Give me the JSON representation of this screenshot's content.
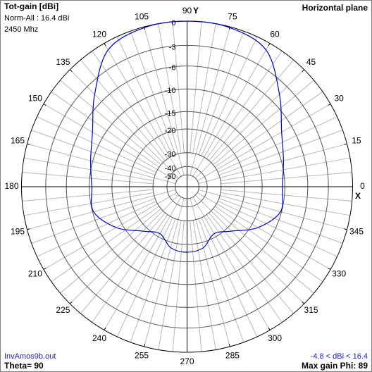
{
  "chart_data": {
    "type": "polar",
    "title": "Tot-gain [dBi]",
    "subtitle": "Norm-All : 16.4 dBi",
    "frequency": "2450 Mhz",
    "plane": "Horizontal plane",
    "y_axis_label": "Y",
    "x_axis_label": "X",
    "file": "InvAmos9b.out",
    "theta": "Theta= 90",
    "range_note": "-4.8 < dBi < 16.4",
    "max_gain": "Max gain Phi: 89",
    "x": [
      0,
      15,
      30,
      45,
      60,
      75,
      90,
      105,
      120,
      135,
      150,
      165,
      180,
      195,
      210,
      225,
      240,
      255,
      270,
      285,
      300,
      315,
      330,
      345,
      360
    ],
    "series": [
      {
        "color": "#0000c8",
        "values": [
          -10.5,
          -9.6,
          -7.9,
          -4.5,
          -0.9,
          -0.1,
          0,
          -0.1,
          -0.9,
          -4.5,
          -7.9,
          -9.6,
          -10.5,
          -10.2,
          -13.4,
          -18.4,
          -21.2,
          -18.3,
          -17.6,
          -18.3,
          -21.2,
          -18.4,
          -13.4,
          -10.2,
          -10.5
        ]
      }
    ],
    "xticks": [
      0,
      15,
      30,
      45,
      60,
      75,
      90,
      105,
      120,
      135,
      150,
      165,
      180,
      195,
      210,
      225,
      240,
      255,
      270,
      285,
      300,
      315,
      330,
      345
    ],
    "ylim": [
      -50,
      0
    ],
    "yticks": [
      0,
      -3,
      -6,
      -10,
      -15,
      -20,
      -30,
      -40,
      -50
    ],
    "grid": true
  }
}
